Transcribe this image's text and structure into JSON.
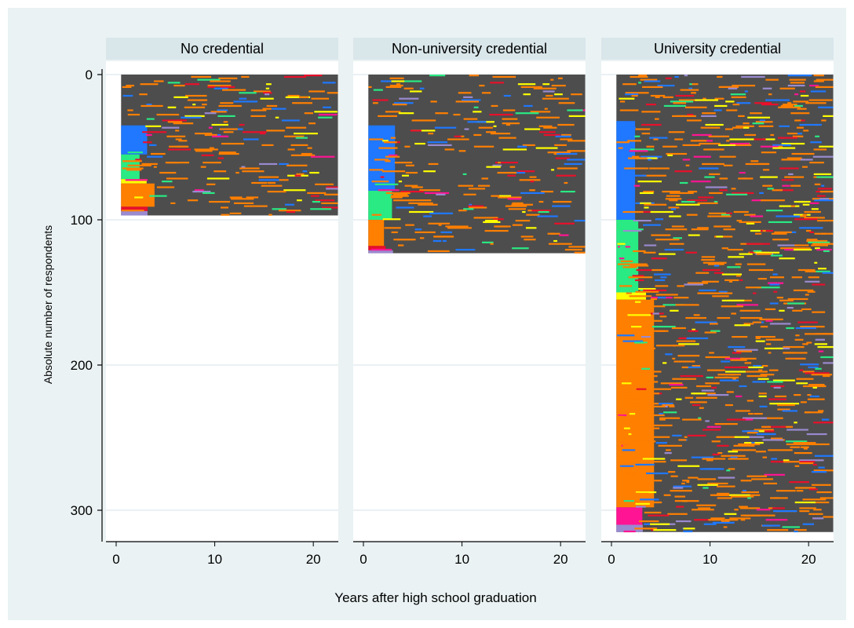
{
  "chart_data": {
    "type": "heatmap",
    "subtype": "sequence index plot",
    "xlabel": "Years after high school graduation",
    "ylabel": "Absolute number of respondents",
    "xlim": [
      0,
      23
    ],
    "ylim": [
      0,
      320
    ],
    "y_inverted": true,
    "x_ticks": [
      0,
      10,
      20
    ],
    "y_ticks": [
      0,
      100,
      200,
      300
    ],
    "grid": true,
    "legend": "none",
    "colors": {
      "background_state": "#4d4d4d",
      "states": [
        "#1f78ff",
        "#29ea83",
        "#ff7f00",
        "#ffff00",
        "#e8102b",
        "#ff1493",
        "#9a8ad0"
      ]
    },
    "panels": [
      {
        "title": "No credential",
        "n_respondents": 97,
        "sequence_length_years": 22,
        "start_blocks": [
          {
            "state": 0,
            "from": 35,
            "to": 55
          },
          {
            "state": 1,
            "from": 55,
            "to": 72
          },
          {
            "state": 3,
            "from": 72,
            "to": 75
          },
          {
            "state": 2,
            "from": 75,
            "to": 91
          },
          {
            "state": 4,
            "from": 91,
            "to": 94
          },
          {
            "state": 6,
            "from": 94,
            "to": 97
          }
        ]
      },
      {
        "title": "Non-university credential",
        "n_respondents": 123,
        "sequence_length_years": 22,
        "start_blocks": [
          {
            "state": 0,
            "from": 35,
            "to": 80
          },
          {
            "state": 1,
            "from": 80,
            "to": 100
          },
          {
            "state": 2,
            "from": 100,
            "to": 118
          },
          {
            "state": 4,
            "from": 118,
            "to": 121
          },
          {
            "state": 6,
            "from": 121,
            "to": 123
          }
        ]
      },
      {
        "title": "University credential",
        "n_respondents": 315,
        "sequence_length_years": 22,
        "start_blocks": [
          {
            "state": 0,
            "from": 32,
            "to": 100
          },
          {
            "state": 1,
            "from": 100,
            "to": 150
          },
          {
            "state": 3,
            "from": 150,
            "to": 155
          },
          {
            "state": 2,
            "from": 155,
            "to": 298
          },
          {
            "state": 5,
            "from": 298,
            "to": 310
          },
          {
            "state": 6,
            "from": 310,
            "to": 315
          }
        ]
      }
    ]
  }
}
